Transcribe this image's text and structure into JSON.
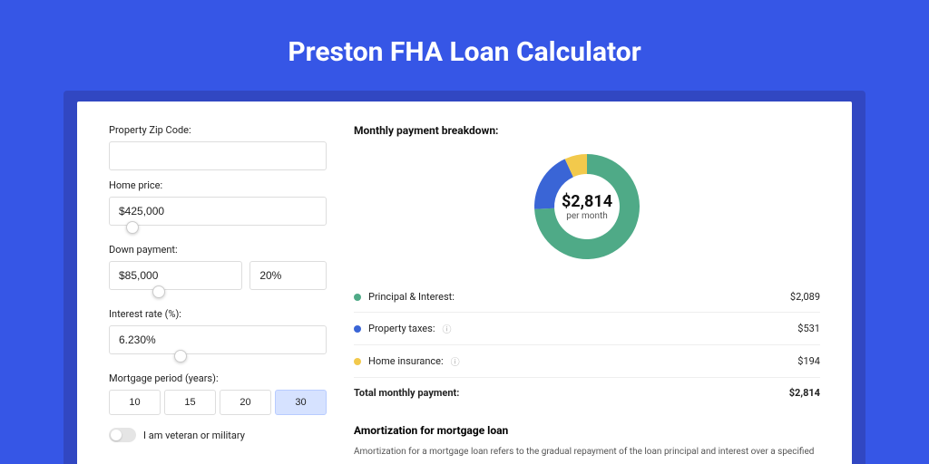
{
  "page": {
    "title": "Preston FHA Loan Calculator",
    "background": "#3656e6"
  },
  "form": {
    "zip": {
      "label": "Property Zip Code:",
      "value": ""
    },
    "homePrice": {
      "label": "Home price:",
      "value": "$425,000",
      "slider_pos_pct": 8
    },
    "downPayment": {
      "label": "Down payment:",
      "value": "$85,000",
      "pct": "20%",
      "slider_pos_pct": 20
    },
    "interestRate": {
      "label": "Interest rate (%):",
      "value": "6.230%",
      "slider_pos_pct": 30
    },
    "mortgagePeriod": {
      "label": "Mortgage period (years):",
      "options": [
        {
          "label": "10",
          "active": false
        },
        {
          "label": "15",
          "active": false
        },
        {
          "label": "20",
          "active": false
        },
        {
          "label": "30",
          "active": true
        }
      ]
    },
    "veteran": {
      "label": "I am veteran or military",
      "checked": false
    }
  },
  "breakdown": {
    "title": "Monthly payment breakdown:",
    "donut": {
      "amount": "$2,814",
      "sub": "per month",
      "segments": [
        {
          "name": "principal_interest",
          "color": "#4faa87",
          "value": 2089
        },
        {
          "name": "property_taxes",
          "color": "#3a65d6",
          "value": 531
        },
        {
          "name": "home_insurance",
          "color": "#f2c94c",
          "value": 194
        }
      ]
    },
    "items": [
      {
        "label": "Principal & Interest:",
        "value": "$2,089",
        "color": "#4faa87",
        "info": false
      },
      {
        "label": "Property taxes:",
        "value": "$531",
        "color": "#3a65d6",
        "info": true
      },
      {
        "label": "Home insurance:",
        "value": "$194",
        "color": "#f2c94c",
        "info": true
      }
    ],
    "total": {
      "label": "Total monthly payment:",
      "value": "$2,814"
    }
  },
  "amortization": {
    "title": "Amortization for mortgage loan",
    "text": "Amortization for a mortgage loan refers to the gradual repayment of the loan principal and interest over a specified"
  },
  "chart_style": {
    "type": "donut",
    "outer_radius": 58,
    "inner_radius": 36,
    "background": "#ffffff"
  }
}
